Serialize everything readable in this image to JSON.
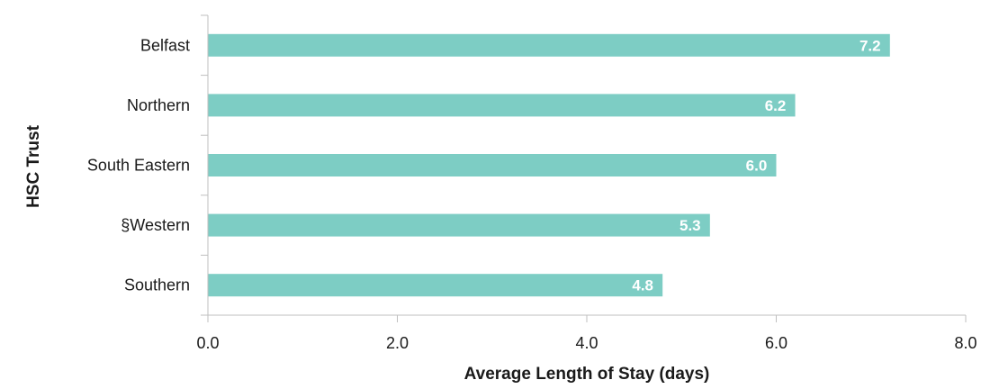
{
  "colors": {
    "bar": "#7dcdc4",
    "axis": "#bfbfbf",
    "label": "#ffffff"
  },
  "chart_data": {
    "type": "bar",
    "orientation": "horizontal",
    "categories": [
      "Belfast",
      "Northern",
      "South Eastern",
      "§Western",
      "Southern"
    ],
    "values": [
      7.2,
      6.2,
      6.0,
      5.3,
      4.8
    ],
    "data_labels": [
      "7.2",
      "6.2",
      "6.0",
      "5.3",
      "4.8"
    ],
    "title": "",
    "xlabel": "Average Length of Stay (days)",
    "ylabel": "HSC Trust",
    "xlim": [
      0,
      8
    ],
    "xticks": [
      0,
      2,
      4,
      6,
      8
    ],
    "xtick_labels": [
      "0.0",
      "2.0",
      "4.0",
      "6.0",
      "8.0"
    ],
    "grid": false,
    "legend": "none"
  }
}
